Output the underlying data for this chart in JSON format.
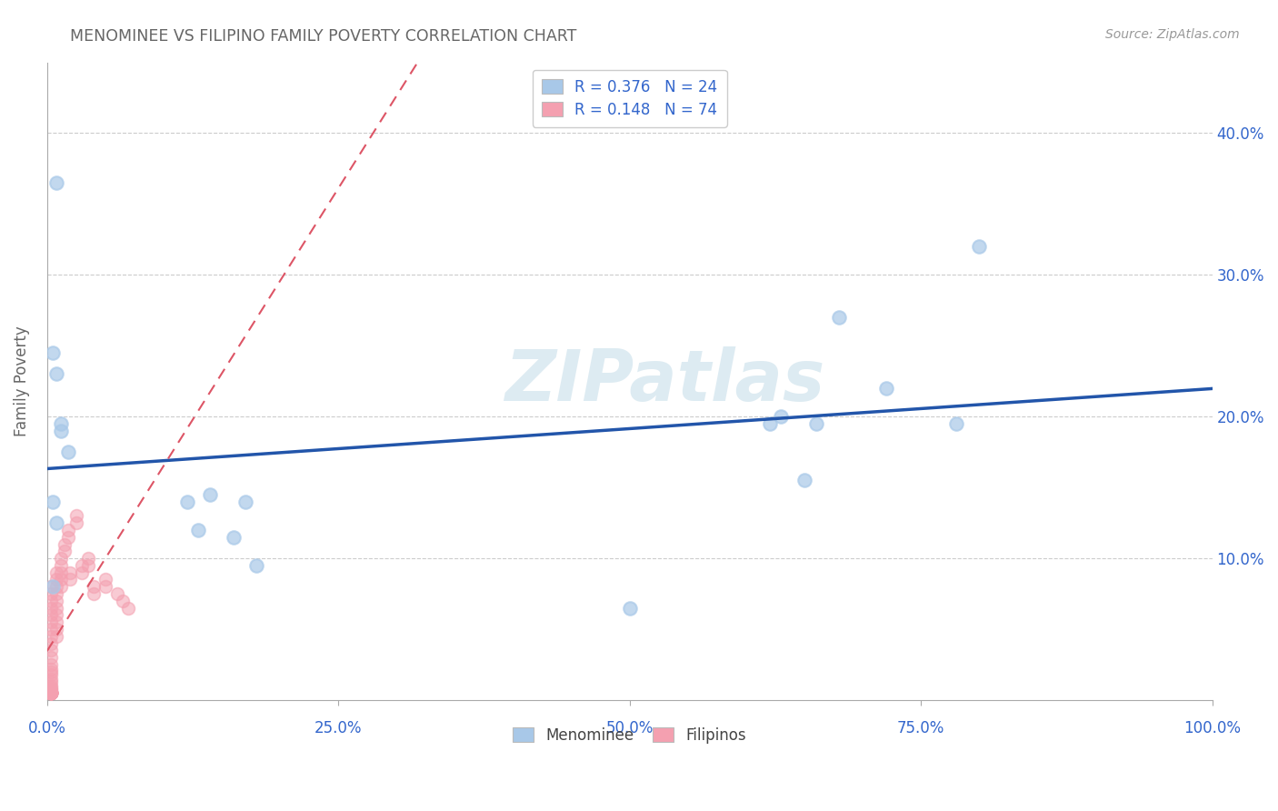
{
  "title": "MENOMINEE VS FILIPINO FAMILY POVERTY CORRELATION CHART",
  "source": "Source: ZipAtlas.com",
  "ylabel": "Family Poverty",
  "watermark": "ZIPatlas",
  "legend_menominee": {
    "R": 0.376,
    "N": 24
  },
  "legend_filipinos": {
    "R": 0.148,
    "N": 74
  },
  "menominee_x": [
    0.008,
    0.012,
    0.008,
    0.012,
    0.018,
    0.005,
    0.62,
    0.65,
    0.68,
    0.72,
    0.63,
    0.66,
    0.005,
    0.008,
    0.5,
    0.14,
    0.16,
    0.18,
    0.13,
    0.17,
    0.78,
    0.8,
    0.005,
    0.12
  ],
  "menominee_y": [
    0.365,
    0.195,
    0.23,
    0.19,
    0.175,
    0.245,
    0.195,
    0.155,
    0.27,
    0.22,
    0.2,
    0.195,
    0.14,
    0.125,
    0.065,
    0.145,
    0.115,
    0.095,
    0.12,
    0.14,
    0.195,
    0.32,
    0.08,
    0.14
  ],
  "filipinos_x": [
    0.003,
    0.003,
    0.003,
    0.003,
    0.003,
    0.003,
    0.003,
    0.003,
    0.003,
    0.003,
    0.003,
    0.003,
    0.003,
    0.003,
    0.003,
    0.003,
    0.003,
    0.003,
    0.003,
    0.003,
    0.003,
    0.003,
    0.003,
    0.003,
    0.003,
    0.003,
    0.003,
    0.003,
    0.003,
    0.003,
    0.003,
    0.003,
    0.003,
    0.003,
    0.003,
    0.003,
    0.003,
    0.003,
    0.003,
    0.003,
    0.008,
    0.008,
    0.008,
    0.008,
    0.008,
    0.008,
    0.008,
    0.008,
    0.008,
    0.008,
    0.012,
    0.012,
    0.012,
    0.012,
    0.012,
    0.015,
    0.015,
    0.018,
    0.018,
    0.02,
    0.02,
    0.025,
    0.025,
    0.03,
    0.03,
    0.035,
    0.035,
    0.04,
    0.04,
    0.05,
    0.05,
    0.06,
    0.065,
    0.07
  ],
  "filipinos_y": [
    0.08,
    0.075,
    0.07,
    0.065,
    0.06,
    0.055,
    0.05,
    0.045,
    0.04,
    0.035,
    0.03,
    0.025,
    0.022,
    0.02,
    0.018,
    0.015,
    0.013,
    0.01,
    0.009,
    0.008,
    0.007,
    0.006,
    0.005,
    0.005,
    0.005,
    0.005,
    0.005,
    0.005,
    0.005,
    0.005,
    0.005,
    0.005,
    0.005,
    0.005,
    0.005,
    0.005,
    0.005,
    0.005,
    0.005,
    0.005,
    0.09,
    0.085,
    0.08,
    0.075,
    0.07,
    0.065,
    0.06,
    0.055,
    0.05,
    0.045,
    0.1,
    0.095,
    0.09,
    0.085,
    0.08,
    0.11,
    0.105,
    0.12,
    0.115,
    0.09,
    0.085,
    0.13,
    0.125,
    0.095,
    0.09,
    0.1,
    0.095,
    0.08,
    0.075,
    0.085,
    0.08,
    0.075,
    0.07,
    0.065
  ],
  "xlim": [
    0.0,
    1.0
  ],
  "ylim": [
    0.0,
    0.45
  ],
  "xticks": [
    0.0,
    0.25,
    0.5,
    0.75,
    1.0
  ],
  "xtick_labels": [
    "0.0%",
    "25.0%",
    "50.0%",
    "75.0%",
    "100.0%"
  ],
  "ytick_labels": [
    "10.0%",
    "20.0%",
    "30.0%",
    "40.0%"
  ],
  "ytick_vals": [
    0.1,
    0.2,
    0.3,
    0.4
  ],
  "menominee_color": "#a8c8e8",
  "filipinos_color": "#f4a0b0",
  "trendline_menominee_color": "#2255aa",
  "trendline_filipinos_color": "#dd5566",
  "grid_color": "#cccccc",
  "background_color": "#ffffff",
  "title_color": "#666666",
  "axis_label_color": "#666666",
  "tick_label_color": "#3366cc",
  "source_color": "#999999"
}
